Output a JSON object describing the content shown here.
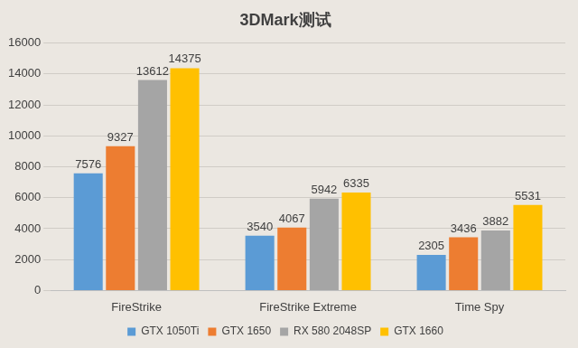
{
  "chart_data": {
    "type": "bar",
    "title": "3DMark测试",
    "categories": [
      "FireStrike",
      "FireStrike Extreme",
      "Time Spy"
    ],
    "series": [
      {
        "name": "GTX 1050Ti",
        "color": "#5b9bd5",
        "values": [
          7576,
          3540,
          2305
        ]
      },
      {
        "name": "GTX 1650",
        "color": "#ed7d31",
        "values": [
          9327,
          4067,
          3436
        ]
      },
      {
        "name": "RX 580 2048SP",
        "color": "#a5a5a5",
        "values": [
          13612,
          5942,
          3882
        ]
      },
      {
        "name": "GTX 1660",
        "color": "#ffc000",
        "values": [
          14375,
          6335,
          5531
        ]
      }
    ],
    "ylim": [
      0,
      16000
    ],
    "yticks": [
      0,
      2000,
      4000,
      6000,
      8000,
      10000,
      12000,
      14000,
      16000
    ],
    "grid": true,
    "legend": "bottom",
    "data_labels": true
  }
}
